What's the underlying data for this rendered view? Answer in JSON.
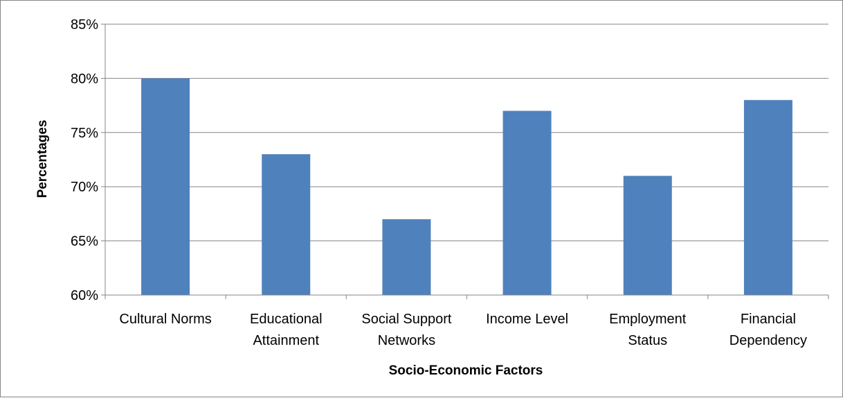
{
  "chart_data": {
    "type": "bar",
    "categories": [
      [
        "Cultural Norms"
      ],
      [
        "Educational",
        "Attainment"
      ],
      [
        "Social Support",
        "Networks"
      ],
      [
        "Income Level"
      ],
      [
        "Employment",
        "Status"
      ],
      [
        "Financial",
        "Dependency"
      ]
    ],
    "values": [
      80,
      73,
      67,
      77,
      71,
      78
    ],
    "xlabel": "Socio-Economic Factors",
    "ylabel": "Percentages",
    "ylim": [
      60,
      85
    ],
    "yticks": [
      60,
      65,
      70,
      75,
      80,
      85
    ],
    "ytick_suffix": "%",
    "bar_color": "#4F81BD",
    "gridline_color": "#868686",
    "grid": true,
    "legend": "none"
  }
}
